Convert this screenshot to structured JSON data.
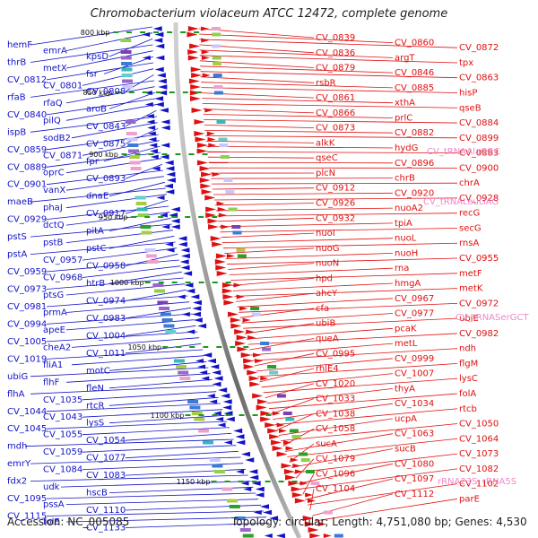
{
  "title": "Chromobacterium violaceum ATCC 12472, complete genome",
  "footer": {
    "accession": "Accession: NC_005085",
    "topology": "Topology: circular; Length: 4,751,080 bp; Genes: 4,530"
  },
  "colors": {
    "reverse_strand": "#1212c8",
    "forward_strand": "#e01010",
    "rna": "#ee88cc",
    "backbone": "#777777",
    "scale_marker": "#1a9a1a"
  },
  "scale_labels": [
    "800 kbp",
    "850 kbp",
    "900 kbp",
    "950 kbp",
    "1000 kbp",
    "1050 kbp",
    "1100 kbp",
    "1150 kbp"
  ],
  "left_labels": [
    "hemF",
    "emrA",
    "kpsD",
    "thrB",
    "metX",
    "fsr",
    "CV_0812",
    "CV_0801",
    "CV_0808",
    "rfaB",
    "rfaQ",
    "aroB",
    "CV_0840",
    "pilQ",
    "CV_0843",
    "ispB",
    "sodB2",
    "CV_0875",
    "CV_0859",
    "CV_0871",
    "fpr",
    "CV_0889",
    "oprC",
    "CV_0893",
    "CV_0901",
    "vanX",
    "dnaE",
    "maeB",
    "phaJ",
    "CV_0917",
    "CV_0929",
    "dctQ",
    "pitA",
    "pstS",
    "pstB",
    "pstC",
    "pstA",
    "CV_0957",
    "CV_0958",
    "CV_0959",
    "CV_0968",
    "htrB",
    "CV_0973",
    "ptsG",
    "CV_0974",
    "CV_0981",
    "prmA",
    "CV_0983",
    "CV_0994",
    "apeE",
    "CV_1004",
    "CV_1005",
    "cheA2",
    "CV_1011",
    "CV_1019",
    "fliA1",
    "motC",
    "ubiG",
    "flhF",
    "fleN",
    "flhA",
    "CV_1035",
    "rtcR",
    "CV_1044",
    "CV_1043",
    "lysS",
    "CV_1045",
    "CV_1055",
    "CV_1054",
    "mdh",
    "CV_1059",
    "CV_1077",
    "emrY",
    "CV_1084",
    "CV_1083",
    "fdx2",
    "udk",
    "hscB",
    "CV_1095",
    "pssA",
    "CV_1110",
    "CV_1115",
    "folE",
    "CV_1133"
  ],
  "right_labels": [
    "CV_0839",
    "CV_0860",
    "CV_0872",
    "CV_0836",
    "argT",
    "tpx",
    "CV_0879",
    "CV_0846",
    "CV_0863",
    "rsbR",
    "CV_0885",
    "hisP",
    "CV_0861",
    "xthA",
    "qseB",
    "CV_0866",
    "prlC",
    "CV_0884",
    "CV_0873",
    "CV_0882",
    "CV_0899",
    "alkK",
    "hydG",
    "CV_0883",
    "qseC",
    "CV_0896",
    "CV_0900",
    "plcN",
    "chrB",
    "chrA",
    "CV_0912",
    "CV_0920",
    "CV_0928",
    "CV_0926",
    "nuoA2",
    "recG",
    "CV_0932",
    "tpiA",
    "secG",
    "nuoI",
    "nuoL",
    "rnsA",
    "nuoG",
    "nuoH",
    "CV_0955",
    "nuoN",
    "rna",
    "metF",
    "hpd",
    "hmgA",
    "metK",
    "ahcY",
    "CV_0967",
    "CV_0972",
    "cfa",
    "CV_0977",
    "ubiE",
    "ubiB",
    "pcaK",
    "CV_0982",
    "queA",
    "metL",
    "ndh",
    "CV_0995",
    "CV_0999",
    "flgM",
    "rhlE4",
    "CV_1007",
    "lysC",
    "CV_1020",
    "thyA",
    "folA",
    "CV_1033",
    "CV_1034",
    "rtcb",
    "CV_1038",
    "ucpA",
    "CV_1050",
    "CV_1058",
    "CV_1063",
    "CV_1064",
    "sucA",
    "sucB",
    "CV_1073",
    "CV_1079",
    "CV_1080",
    "CV_1082",
    "CV_1096",
    "CV_1097",
    "CV_1102",
    "CV_1104",
    "CV_1112",
    "parE"
  ],
  "rna_labels": [
    "CV_tRNAAlaCGC",
    "CV_tRNALeuGAG",
    "CV_tRNASerGCT",
    "rRNA23S",
    "rRNA5S"
  ]
}
